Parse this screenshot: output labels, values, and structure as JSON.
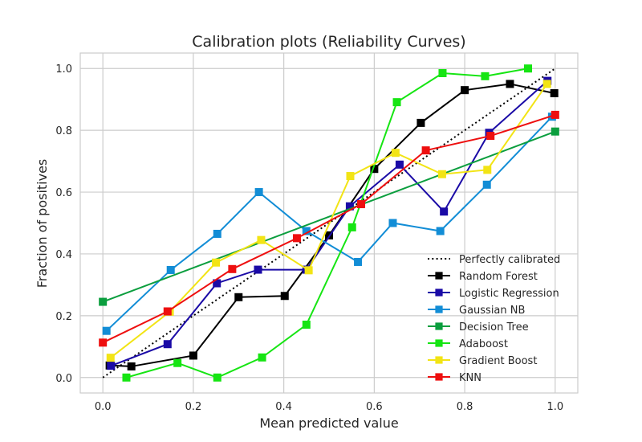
{
  "chart_data": {
    "type": "line",
    "title": "Calibration plots (Reliability Curves)",
    "xlabel": "Mean predicted value",
    "ylabel": "Fraction of positives",
    "xlim": [
      -0.05,
      1.05
    ],
    "ylim": [
      -0.05,
      1.05
    ],
    "xticks": [
      "0.0",
      "0.2",
      "0.4",
      "0.6",
      "0.8",
      "1.0"
    ],
    "yticks": [
      "0.0",
      "0.2",
      "0.4",
      "0.6",
      "0.8",
      "1.0"
    ],
    "grid": true,
    "legend_position": "lower-right",
    "reference": {
      "name": "Perfectly calibrated",
      "x": [
        0,
        1
      ],
      "y": [
        0,
        1
      ],
      "color": "#000000",
      "style": "dotted"
    },
    "series": [
      {
        "name": "Random Forest",
        "color": "#000000",
        "x": [
          0.015,
          0.063,
          0.2,
          0.3,
          0.402,
          0.5,
          0.6,
          0.703,
          0.8,
          0.9,
          0.998
        ],
        "y": [
          0.039,
          0.036,
          0.071,
          0.26,
          0.264,
          0.46,
          0.675,
          0.824,
          0.93,
          0.95,
          0.92
        ]
      },
      {
        "name": "Logistic Regression",
        "color": "#1a0aa6",
        "x": [
          0.018,
          0.143,
          0.252,
          0.343,
          0.45,
          0.546,
          0.656,
          0.754,
          0.854,
          0.983
        ],
        "y": [
          0.038,
          0.108,
          0.305,
          0.349,
          0.349,
          0.554,
          0.689,
          0.537,
          0.792,
          0.96
        ]
      },
      {
        "name": "Gaussian NB",
        "color": "#128dd6",
        "x": [
          0.008,
          0.15,
          0.253,
          0.345,
          0.45,
          0.564,
          0.641,
          0.746,
          0.849,
          0.993
        ],
        "y": [
          0.151,
          0.348,
          0.465,
          0.6,
          0.474,
          0.374,
          0.5,
          0.474,
          0.624,
          0.844
        ]
      },
      {
        "name": "Decision Tree",
        "color": "#0b9e3e",
        "x": [
          0.0,
          1.0
        ],
        "y": [
          0.245,
          0.796
        ]
      },
      {
        "name": "Adaboost",
        "color": "#16e513",
        "x": [
          0.052,
          0.165,
          0.253,
          0.352,
          0.45,
          0.551,
          0.65,
          0.751,
          0.845,
          0.94
        ],
        "y": [
          0.0,
          0.047,
          0.0,
          0.065,
          0.171,
          0.486,
          0.891,
          0.985,
          0.975,
          1.0
        ]
      },
      {
        "name": "Gradient Boost",
        "color": "#f2e415",
        "x": [
          0.017,
          0.148,
          0.25,
          0.35,
          0.455,
          0.547,
          0.647,
          0.75,
          0.85,
          0.982
        ],
        "y": [
          0.064,
          0.213,
          0.372,
          0.445,
          0.347,
          0.652,
          0.727,
          0.658,
          0.672,
          0.95
        ]
      },
      {
        "name": "KNN",
        "color": "#ee0f0f",
        "x": [
          0.0,
          0.143,
          0.286,
          0.429,
          0.571,
          0.714,
          0.857,
          1.0
        ],
        "y": [
          0.113,
          0.214,
          0.351,
          0.451,
          0.561,
          0.735,
          0.782,
          0.85
        ]
      }
    ]
  }
}
